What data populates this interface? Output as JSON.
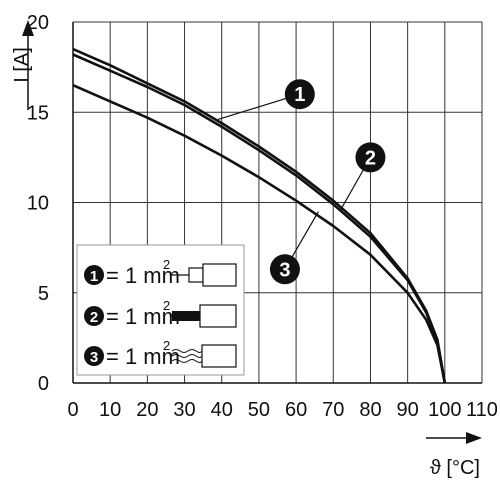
{
  "chart_data": {
    "type": "line",
    "title": "",
    "xlabel": "ϑ [°C]",
    "ylabel": "I [A]",
    "xlim": [
      0,
      110
    ],
    "ylim": [
      0,
      20
    ],
    "x_ticks": [
      0,
      10,
      20,
      30,
      40,
      50,
      60,
      70,
      80,
      90,
      100,
      110
    ],
    "y_ticks": [
      0,
      5,
      10,
      15,
      20
    ],
    "grid": true,
    "series": [
      {
        "name": "1",
        "x": [
          0,
          10,
          20,
          30,
          40,
          50,
          60,
          70,
          80,
          90,
          95,
          98,
          100
        ],
        "y": [
          18.5,
          17.6,
          16.6,
          15.6,
          14.4,
          13.1,
          11.7,
          10.1,
          8.3,
          5.8,
          4.0,
          2.4,
          0
        ]
      },
      {
        "name": "2",
        "x": [
          0,
          10,
          20,
          30,
          40,
          50,
          60,
          70,
          80,
          90,
          95,
          98,
          100
        ],
        "y": [
          18.2,
          17.3,
          16.4,
          15.4,
          14.2,
          12.9,
          11.5,
          9.9,
          8.1,
          5.7,
          3.9,
          2.3,
          0
        ]
      },
      {
        "name": "3",
        "x": [
          0,
          10,
          20,
          30,
          40,
          50,
          60,
          70,
          80,
          90,
          95,
          98,
          100
        ],
        "y": [
          16.5,
          15.6,
          14.7,
          13.7,
          12.6,
          11.4,
          10.1,
          8.7,
          7.1,
          5.0,
          3.5,
          2.1,
          0
        ]
      }
    ],
    "markers": [
      {
        "label": "1",
        "points_to_series": "1",
        "target_x": 39,
        "target_y": 14.6,
        "at_x": 61,
        "at_y": 16.0
      },
      {
        "label": "2",
        "points_to_series": "2",
        "target_x": 72,
        "target_y": 9.6,
        "at_x": 80,
        "at_y": 12.5
      },
      {
        "label": "3",
        "points_to_series": "3",
        "target_x": 66,
        "target_y": 9.5,
        "at_x": 57,
        "at_y": 6.3
      }
    ],
    "legend": {
      "placement": "bottom-left",
      "entries": [
        {
          "num": "1",
          "text": "= 1 mm",
          "sup": "2",
          "icon": "ferrule-with-collar-icon"
        },
        {
          "num": "2",
          "text": "= 1 mm",
          "sup": "2",
          "icon": "solid-conductor-icon"
        },
        {
          "num": "3",
          "text": "= 1 mm",
          "sup": "2",
          "icon": "stranded-conductor-icon"
        }
      ]
    }
  }
}
